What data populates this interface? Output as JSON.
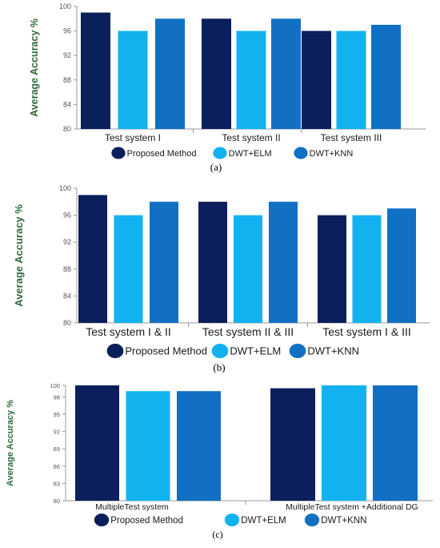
{
  "chart_data": [
    {
      "type": "bar",
      "caption": "(a)",
      "ylabel": "Average Accuracy %",
      "ylim": [
        80,
        100
      ],
      "yticks": [
        80,
        84,
        88,
        92,
        96,
        100
      ],
      "categories": [
        "Test system I",
        "Test system II",
        "Test system III"
      ],
      "series": [
        {
          "name": "Proposed Method",
          "color": "#0b1f5c",
          "values": [
            99,
            98,
            96
          ]
        },
        {
          "name": "DWT+ELM",
          "color": "#12b2f0",
          "values": [
            96,
            96,
            96
          ]
        },
        {
          "name": "DWT+KNN",
          "color": "#1170c3",
          "values": [
            98,
            98,
            97
          ]
        }
      ],
      "legend": "bottom",
      "grid": false
    },
    {
      "type": "bar",
      "caption": "(b)",
      "ylabel": "Average Accuracy %",
      "ylim": [
        80,
        100
      ],
      "yticks": [
        80,
        84,
        88,
        92,
        96,
        100
      ],
      "categories": [
        "Test system I & II",
        "Test system II & III",
        "Test system I & III"
      ],
      "series": [
        {
          "name": "Proposed Method",
          "color": "#0b1f5c",
          "values": [
            99,
            98,
            96
          ]
        },
        {
          "name": "DWT+ELM",
          "color": "#12b2f0",
          "values": [
            96,
            96,
            96
          ]
        },
        {
          "name": "DWT+KNN",
          "color": "#1170c3",
          "values": [
            98,
            98,
            97
          ]
        }
      ],
      "legend": "bottom",
      "grid": false
    },
    {
      "type": "bar",
      "caption": "(c)",
      "ylabel": "Average Accuracy %",
      "ylim": [
        80,
        100
      ],
      "yticks": [
        80,
        83,
        86,
        89,
        92,
        95,
        98,
        100
      ],
      "categories": [
        "MultipleTest system",
        "MultipleTest system +Additional DG"
      ],
      "series": [
        {
          "name": "Proposed Method",
          "color": "#0b1f5c",
          "values": [
            100,
            99.5
          ]
        },
        {
          "name": "DWT+ELM",
          "color": "#12b2f0",
          "values": [
            99,
            100
          ]
        },
        {
          "name": "DWT+KNN",
          "color": "#1170c3",
          "values": [
            99,
            100
          ]
        }
      ],
      "legend": "bottom",
      "grid": false
    }
  ]
}
